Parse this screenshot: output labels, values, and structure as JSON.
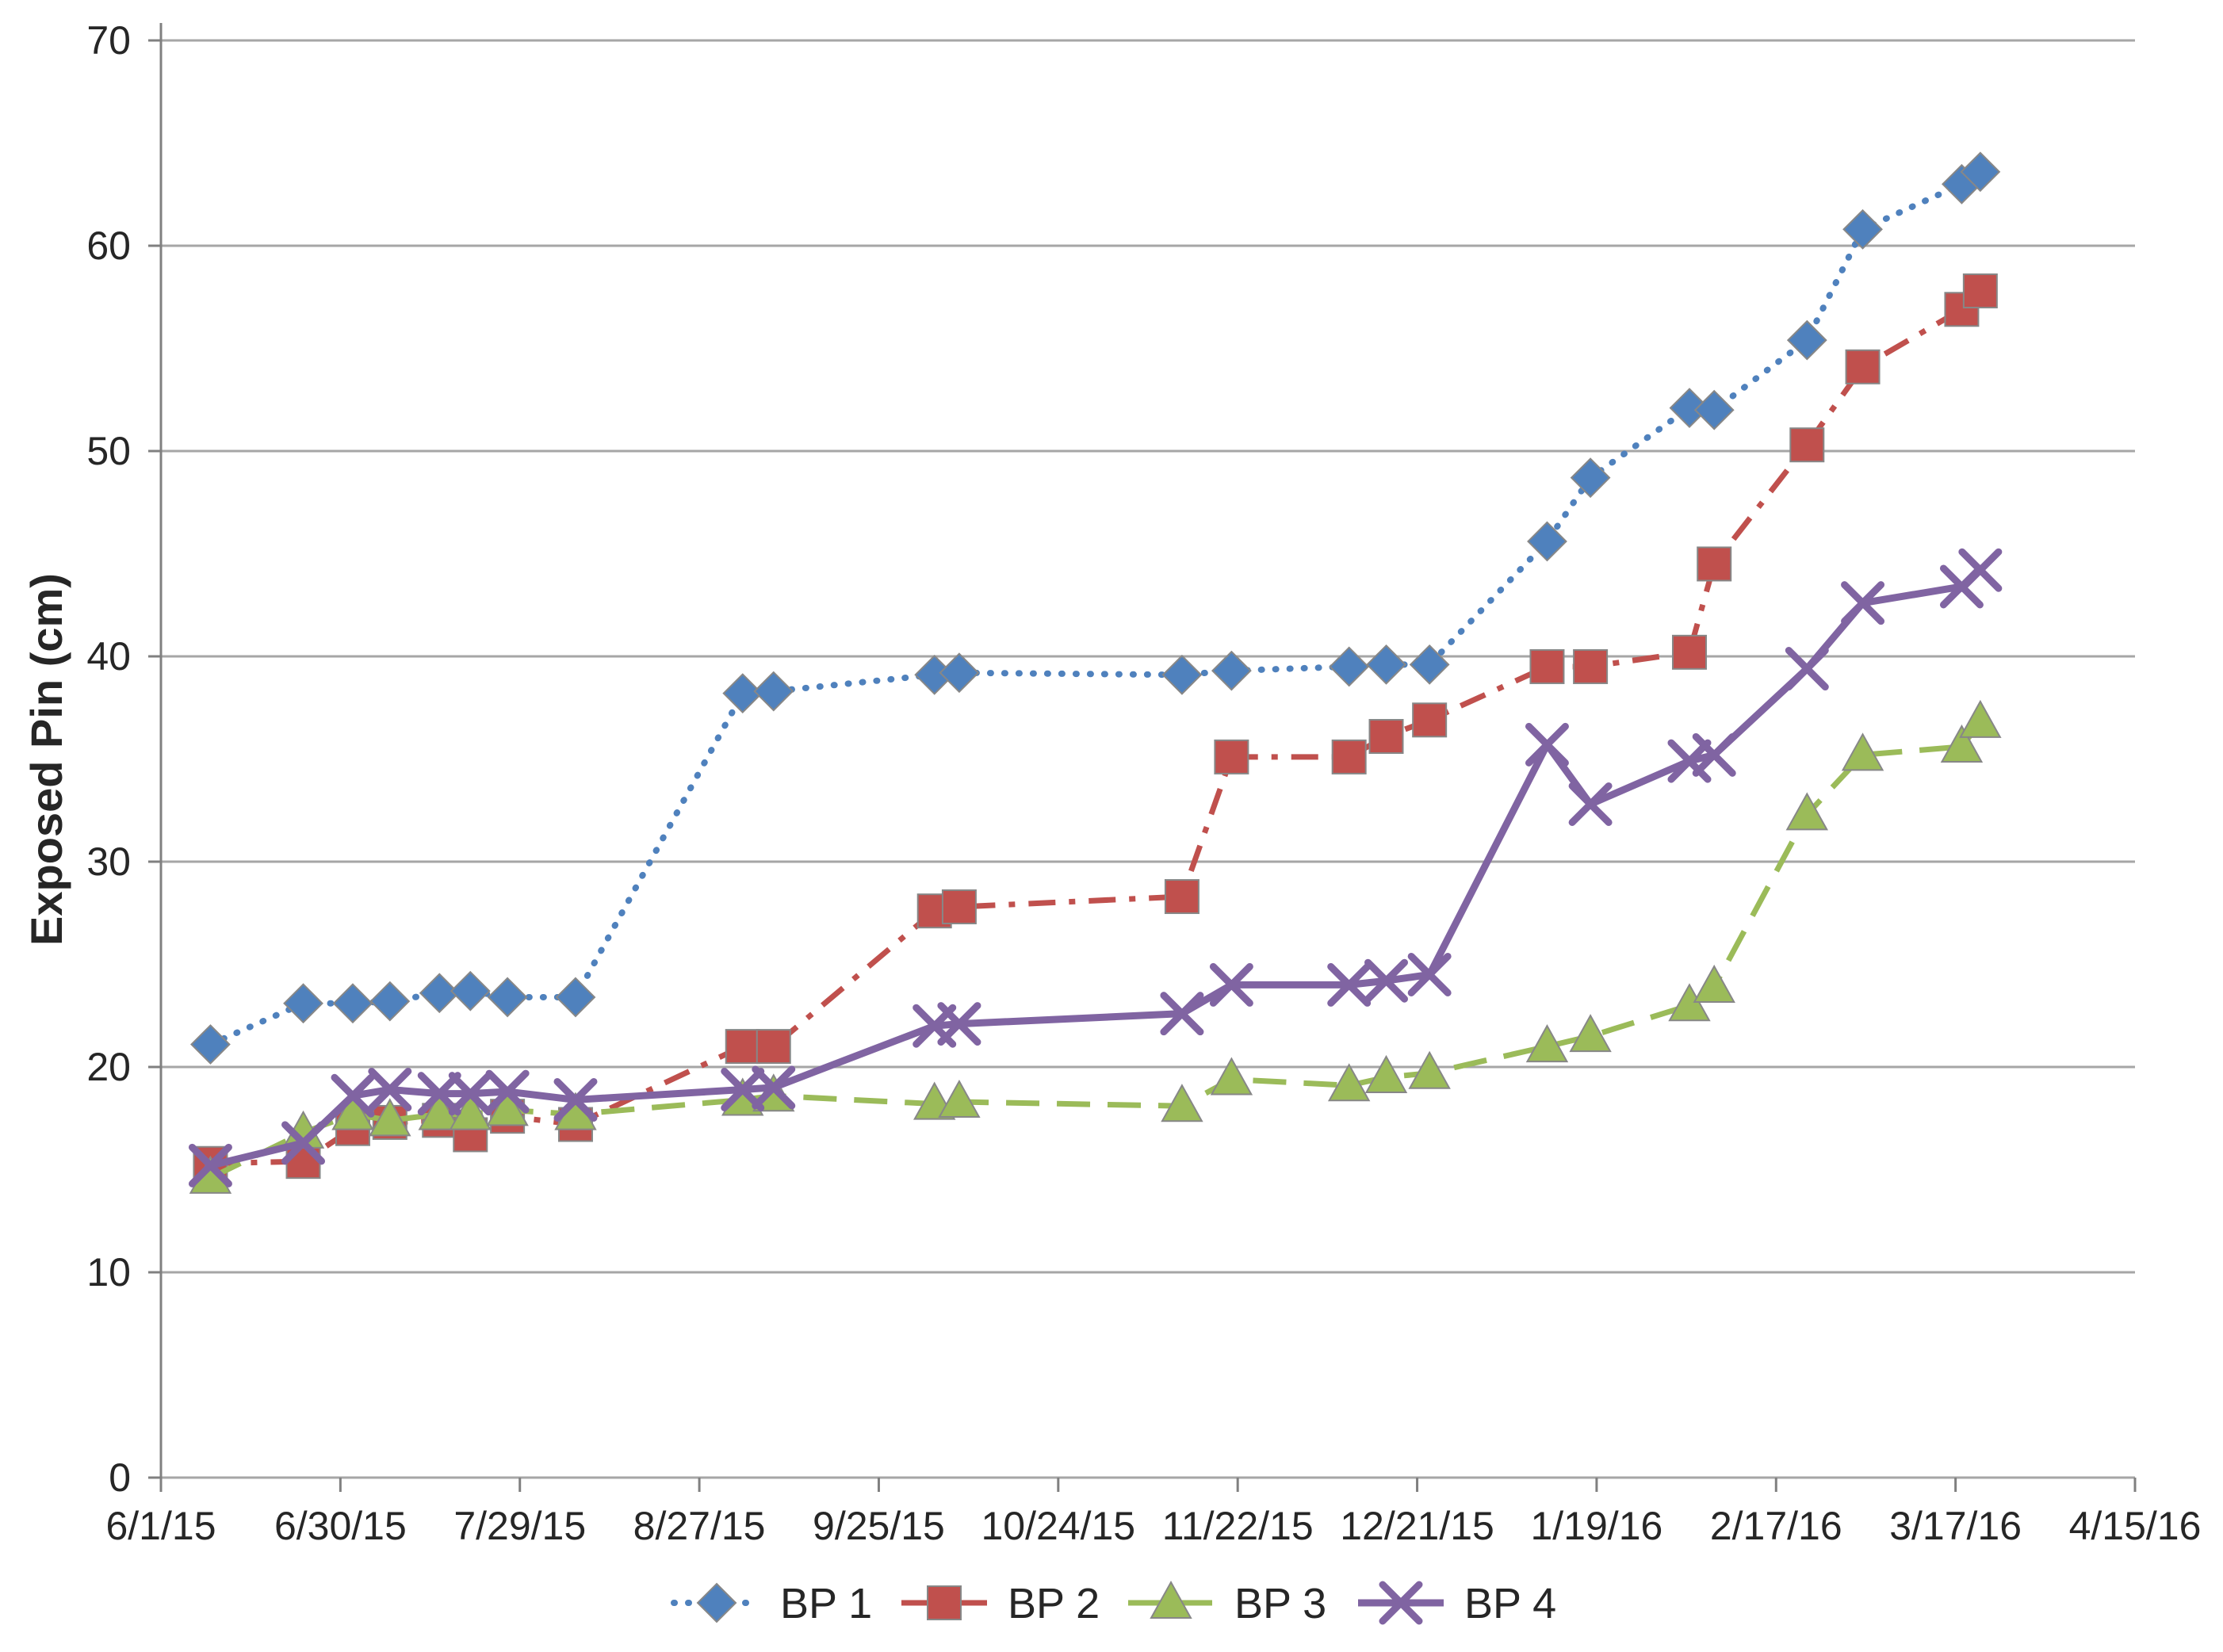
{
  "page": {
    "background": "#ffffff"
  },
  "chart_data": {
    "type": "line",
    "title": "",
    "xlabel": "",
    "ylabel": "Exposed Pin (cm)",
    "ylim": [
      0,
      70
    ],
    "ytick_step": 10,
    "y_tick_labels": [
      "0",
      "10",
      "20",
      "30",
      "40",
      "50",
      "60",
      "70"
    ],
    "grid": "horizontal",
    "legend_position": "bottom",
    "x_axis": {
      "tick_labels": [
        "6/1/15",
        "6/30/15",
        "7/29/15",
        "8/27/15",
        "9/25/15",
        "10/24/15",
        "11/22/15",
        "12/21/15",
        "1/19/16",
        "2/17/16",
        "3/17/16",
        "4/15/16"
      ],
      "tick_interval_days": 29,
      "range_days": [
        0,
        319
      ]
    },
    "x_dates": [
      "6/9/15",
      "6/24/15",
      "7/2/15",
      "7/8/15",
      "7/16/15",
      "7/21/15",
      "7/27/15",
      "8/7/15",
      "9/3/15",
      "9/8/15",
      "10/4/15",
      "10/8/15",
      "11/13/15",
      "11/21/15",
      "12/10/15",
      "12/16/15",
      "12/23/15",
      "1/11/16",
      "1/18/16",
      "2/3/16",
      "2/7/16",
      "2/22/16",
      "3/2/16",
      "3/18/16",
      "3/21/16"
    ],
    "x_days": [
      8,
      23,
      31,
      37,
      45,
      50,
      56,
      67,
      94,
      99,
      125,
      129,
      165,
      173,
      192,
      198,
      205,
      224,
      231,
      247,
      251,
      266,
      275,
      291,
      294
    ],
    "series": [
      {
        "name": "BP 1",
        "color": "#4F81BD",
        "marker": "diamond",
        "line_style": "dotted",
        "values": [
          21.1,
          23.1,
          23.1,
          23.2,
          23.6,
          23.7,
          23.4,
          23.4,
          38.2,
          38.3,
          39.1,
          39.2,
          39.1,
          39.3,
          39.5,
          39.6,
          39.6,
          45.6,
          48.7,
          52.1,
          52.0,
          55.4,
          60.8,
          63.0,
          63.6
        ]
      },
      {
        "name": "BP 2",
        "color": "#C0504D",
        "marker": "square",
        "line_style": "dash-dot",
        "values": [
          15.3,
          15.4,
          17.0,
          17.3,
          17.4,
          16.7,
          17.6,
          17.2,
          21.0,
          21.0,
          27.6,
          27.8,
          28.3,
          35.1,
          35.1,
          36.1,
          36.9,
          39.5,
          39.5,
          40.2,
          44.5,
          50.3,
          54.1,
          56.9,
          57.8
        ]
      },
      {
        "name": "BP 3",
        "color": "#9BBB59",
        "marker": "triangle",
        "line_style": "dashed",
        "values": [
          14.6,
          16.8,
          17.7,
          17.4,
          17.7,
          17.7,
          17.9,
          17.7,
          18.4,
          18.6,
          18.2,
          18.3,
          18.1,
          19.4,
          19.1,
          19.5,
          19.7,
          21.0,
          21.5,
          23.0,
          23.9,
          32.3,
          35.2,
          35.6,
          36.8
        ]
      },
      {
        "name": "BP 4",
        "color": "#8064A2",
        "marker": "x",
        "line_style": "solid",
        "values": [
          15.2,
          16.3,
          18.6,
          18.9,
          18.7,
          18.7,
          18.8,
          18.4,
          18.9,
          19.0,
          22.0,
          22.1,
          22.6,
          24.0,
          24.0,
          24.2,
          24.5,
          35.7,
          32.8,
          34.9,
          35.2,
          39.4,
          42.6,
          43.4,
          44.2
        ]
      }
    ],
    "colors": {
      "gridline": "#A6A6A6",
      "axis": "#808080",
      "tick_text": "#262626"
    }
  }
}
